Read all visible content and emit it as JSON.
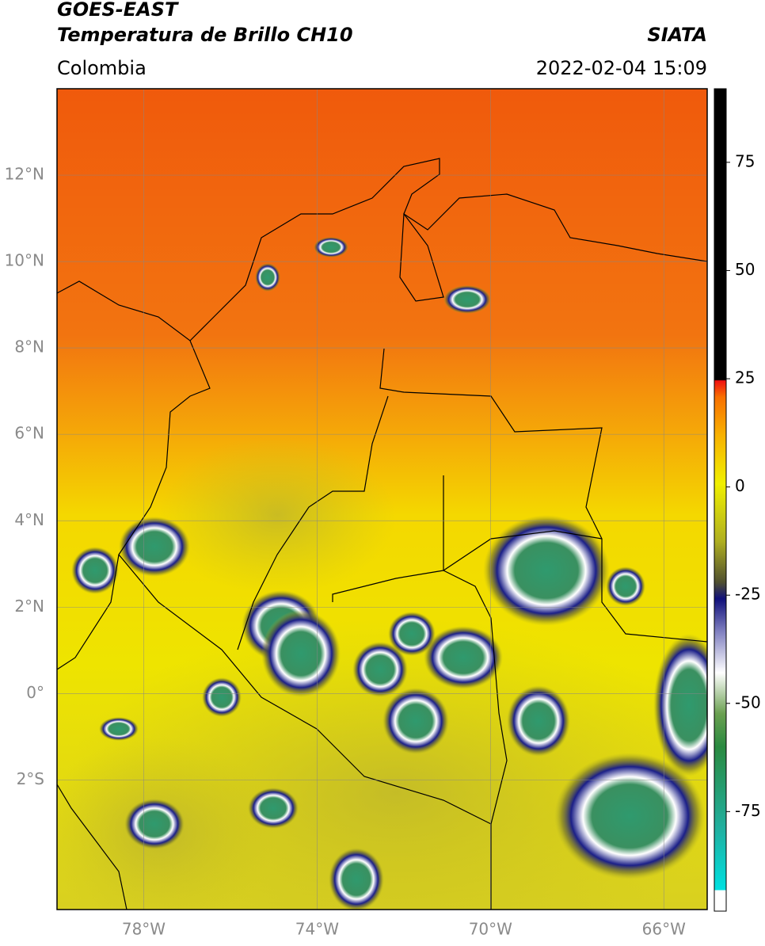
{
  "header": {
    "title": "GOES-EAST",
    "subtitle": "Temperatura de Brillo CH10",
    "source": "SIATA",
    "region": "Colombia",
    "datetime": "2022-02-04 15:09"
  },
  "map": {
    "lon_lim": [
      -80,
      -65
    ],
    "lat_lim": [
      -5,
      14
    ],
    "lon_ticks": [
      {
        "value": -78,
        "label": "78°W"
      },
      {
        "value": -74,
        "label": "74°W"
      },
      {
        "value": -70,
        "label": "70°W"
      },
      {
        "value": -66,
        "label": "66°W"
      }
    ],
    "lat_ticks": [
      {
        "value": 12,
        "label": "12°N"
      },
      {
        "value": 10,
        "label": "10°N"
      },
      {
        "value": 8,
        "label": "8°N"
      },
      {
        "value": 6,
        "label": "6°N"
      },
      {
        "value": 4,
        "label": "4°N"
      },
      {
        "value": 2,
        "label": "2°N"
      },
      {
        "value": 0,
        "label": "0°"
      },
      {
        "value": -2,
        "label": "2°S"
      }
    ],
    "grid": true
  },
  "colorbar": {
    "lim": [
      -98,
      92
    ],
    "ticks": [
      75,
      50,
      25,
      0,
      -25,
      -50,
      -75
    ]
  }
}
